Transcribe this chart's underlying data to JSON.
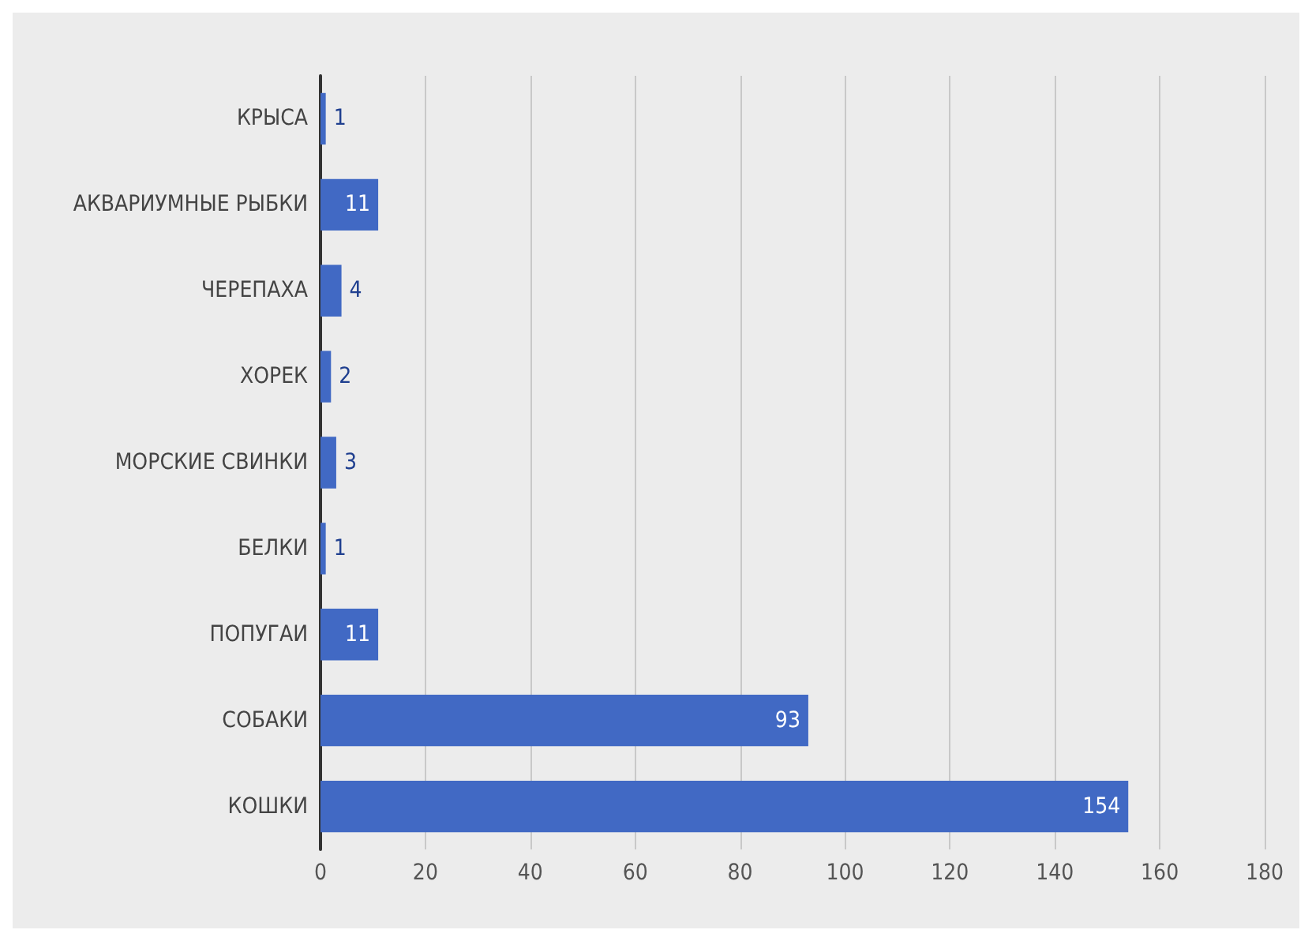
{
  "chart_data": {
    "type": "bar",
    "orientation": "horizontal",
    "categories": [
      "КРЫСА",
      "АКВАРИУМНЫЕ РЫБКИ",
      "ЧЕРЕПАХА",
      "ХОРЕК",
      "МОРСКИЕ СВИНКИ",
      "БЕЛКИ",
      "ПОПУГАИ",
      "СОБАКИ",
      "КОШКИ"
    ],
    "values": [
      1,
      11,
      4,
      2,
      3,
      1,
      11,
      93,
      154
    ],
    "color": "#4169c4",
    "xlim": [
      0,
      180
    ],
    "xticks": [
      0,
      20,
      40,
      60,
      80,
      100,
      120,
      140,
      160,
      180
    ],
    "grid": "x",
    "data_labels": true
  }
}
